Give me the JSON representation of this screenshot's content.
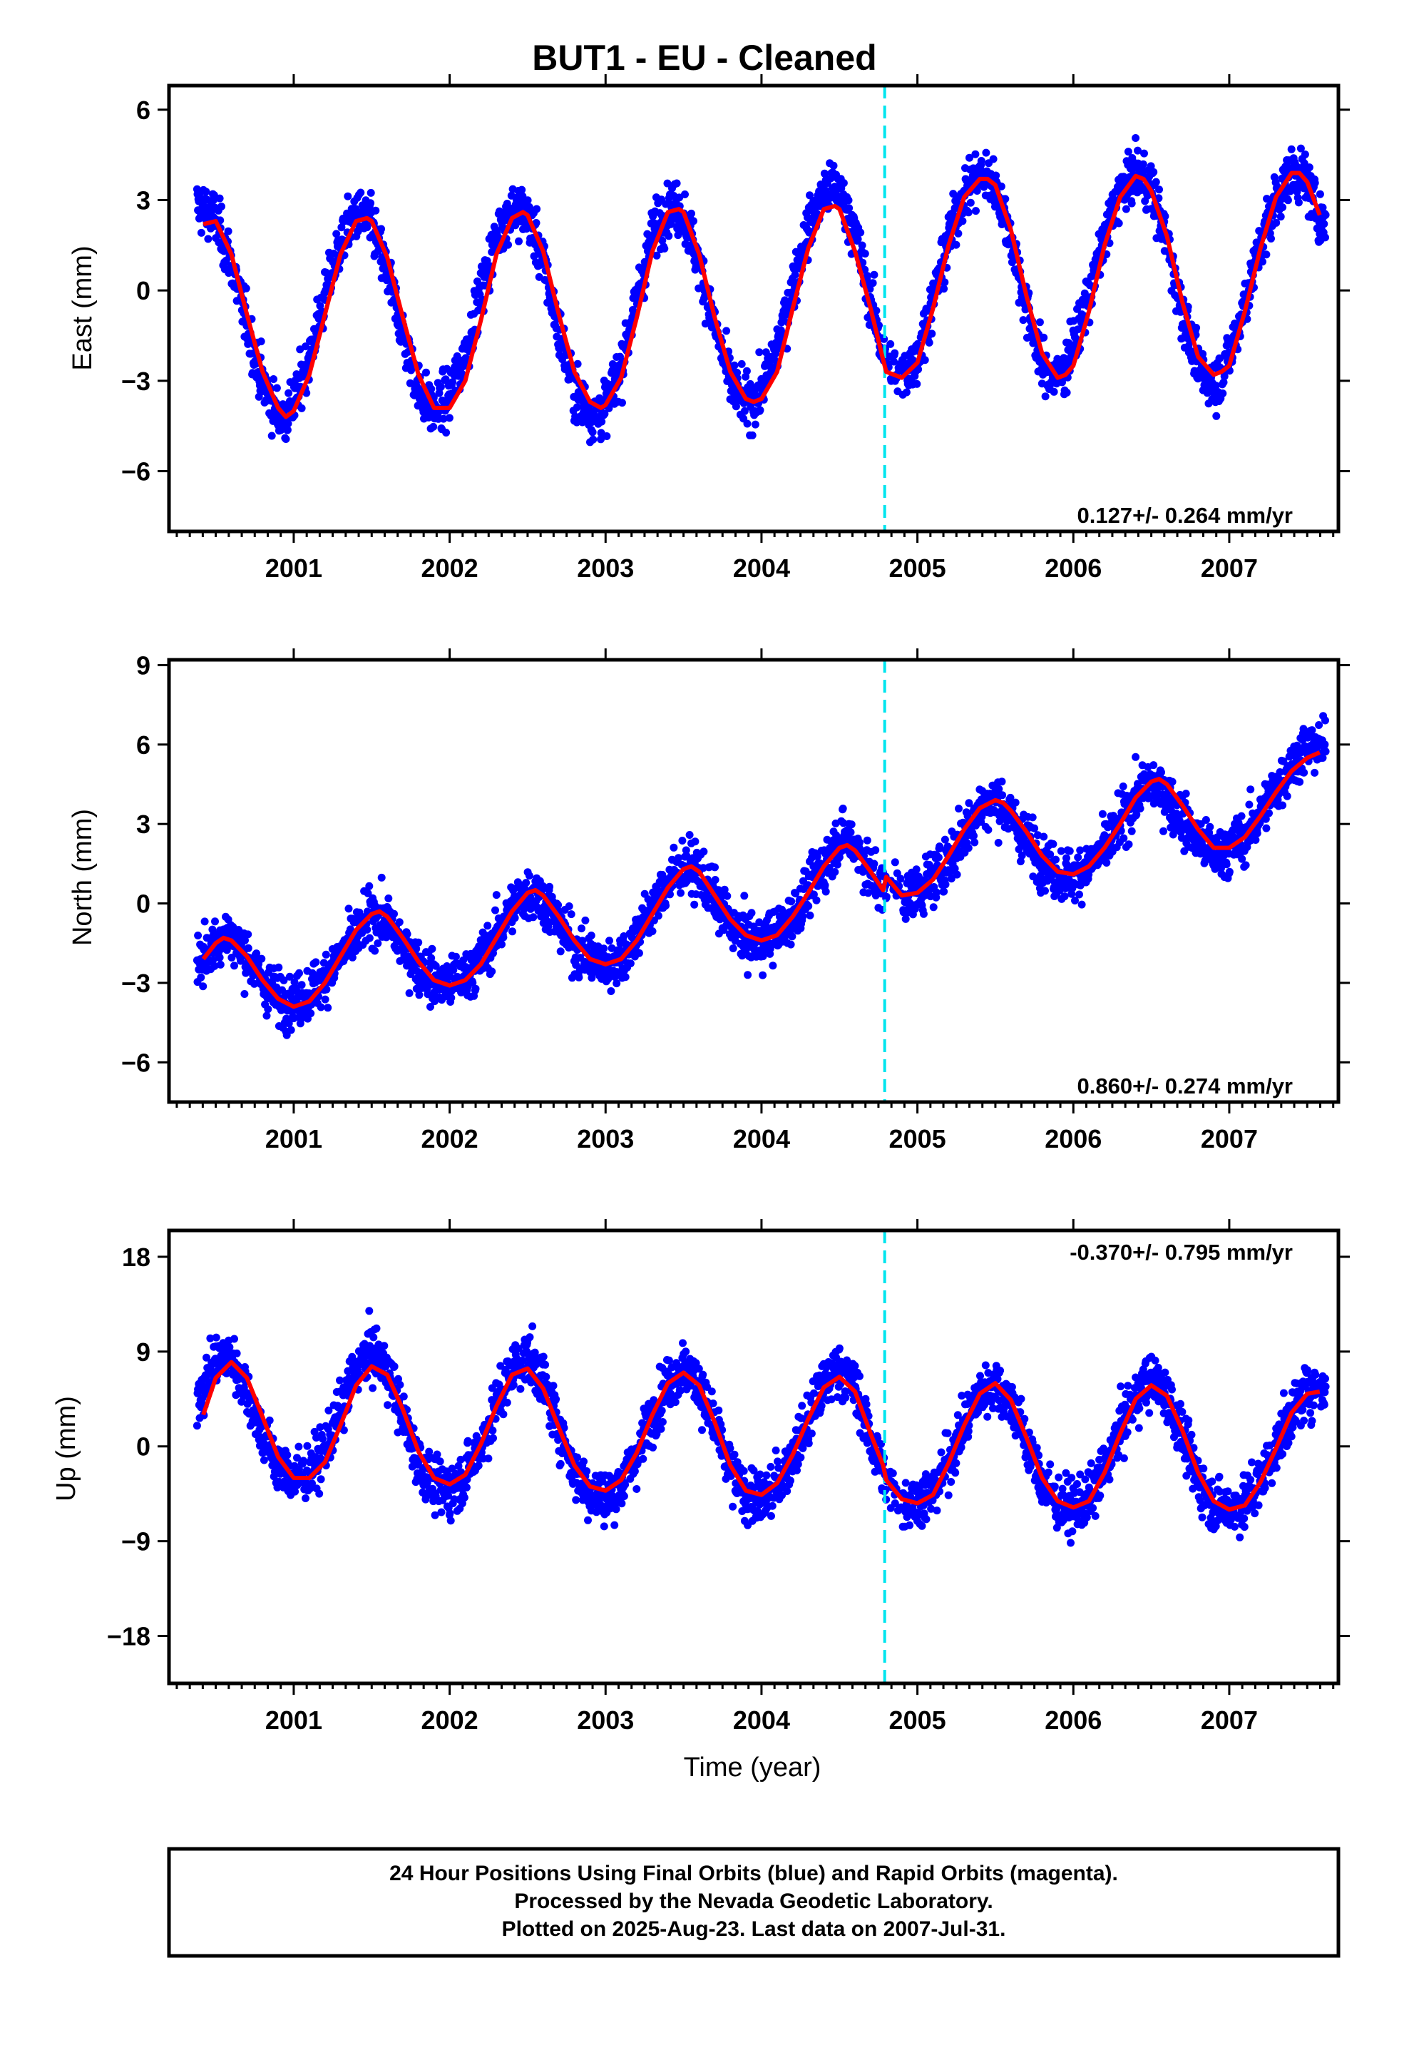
{
  "title": "BUT1  - EU - Cleaned",
  "xlabel": "Time (year)",
  "x_tick_labels": [
    "2001",
    "2002",
    "2003",
    "2004",
    "2005",
    "2006",
    "2007"
  ],
  "colors": {
    "points": "#0000ff",
    "fit": "#ff0000",
    "break_line": "#00e5ee",
    "frame": "#000000"
  },
  "footer": {
    "line1": "24 Hour Positions Using Final Orbits (blue) and Rapid Orbits (magenta).",
    "line2": "Processed by the Nevada Geodetic Laboratory.",
    "line3": "Plotted on 2025-Aug-23. Last data on 2007-Jul-31."
  },
  "chart_data": [
    {
      "type": "scatter",
      "component": "east",
      "ylabel": "East (mm)",
      "rate_text": "0.127+/- 0.264 mm/yr",
      "rate_position": "bottom-right",
      "xlim": [
        2000.2,
        2007.7
      ],
      "ylim": [
        -8,
        6.8
      ],
      "yticks": [
        -6,
        -3,
        0,
        3,
        6
      ],
      "equipment_change_year": 2004.79,
      "series": [
        {
          "name": "",
          "kind": "points",
          "points_note": "daily positions 2000.38–2007.58",
          "x": [
            2000.4,
            2000.5,
            2000.6,
            2000.7,
            2000.8,
            2000.9,
            2001.0,
            2001.1,
            2001.2,
            2001.3,
            2001.4,
            2001.5,
            2001.6,
            2001.7,
            2001.8,
            2001.9,
            2002.0,
            2002.1,
            2002.2,
            2002.3,
            2002.4,
            2002.5,
            2002.6,
            2002.7,
            2002.8,
            2002.9,
            2003.0,
            2003.1,
            2003.2,
            2003.3,
            2003.4,
            2003.5,
            2003.6,
            2003.7,
            2003.8,
            2003.9,
            2004.0,
            2004.1,
            2004.2,
            2004.3,
            2004.4,
            2004.5,
            2004.6,
            2004.7,
            2004.8,
            2004.9,
            2005.0,
            2005.1,
            2005.2,
            2005.3,
            2005.4,
            2005.5,
            2005.6,
            2005.7,
            2005.8,
            2005.9,
            2006.0,
            2006.1,
            2006.2,
            2006.3,
            2006.4,
            2006.5,
            2006.6,
            2006.7,
            2006.8,
            2006.9,
            2007.0,
            2007.1,
            2007.2,
            2007.3,
            2007.4,
            2007.5,
            2007.6
          ],
          "y": [
            3.5,
            2.5,
            0.5,
            -1.5,
            -3.5,
            -4.5,
            -3.5,
            -1.5,
            0.5,
            2.0,
            2.8,
            2.0,
            0.0,
            -2.0,
            -3.8,
            -4.2,
            -3.0,
            -1.0,
            1.0,
            2.5,
            3.0,
            2.5,
            0.5,
            -2.0,
            -4.0,
            -4.5,
            -4.0,
            -2.0,
            0.5,
            2.5,
            3.0,
            2.5,
            0.5,
            -1.5,
            -3.5,
            -4.0,
            -3.0,
            -1.0,
            1.0,
            2.8,
            4.0,
            4.0,
            2.5,
            0.0,
            -2.0,
            -2.8,
            -2.0,
            0.0,
            2.0,
            3.5,
            4.0,
            3.5,
            1.5,
            -1.0,
            -3.0,
            -3.0,
            -1.0,
            0.5,
            2.0,
            3.5,
            4.0,
            3.5,
            1.5,
            -1.0,
            -3.0,
            -3.5,
            -2.0,
            0.0,
            1.5,
            3.0,
            4.0,
            3.5,
            2.0
          ]
        },
        {
          "name": "",
          "kind": "fit",
          "x": [
            2000.42,
            2000.5,
            2000.6,
            2000.7,
            2000.8,
            2000.9,
            2000.95,
            2001.0,
            2001.1,
            2001.2,
            2001.3,
            2001.4,
            2001.47,
            2001.5,
            2001.6,
            2001.7,
            2001.8,
            2001.9,
            2002.0,
            2002.1,
            2002.2,
            2002.3,
            2002.4,
            2002.47,
            2002.5,
            2002.6,
            2002.7,
            2002.8,
            2002.9,
            2002.97,
            2003.0,
            2003.1,
            2003.2,
            2003.3,
            2003.4,
            2003.47,
            2003.5,
            2003.6,
            2003.7,
            2003.8,
            2003.9,
            2003.95,
            2004.0,
            2004.1,
            2004.2,
            2004.3,
            2004.4,
            2004.47,
            2004.5,
            2004.6,
            2004.7,
            2004.78,
            2004.8,
            2004.9,
            2005.0,
            2005.1,
            2005.2,
            2005.3,
            2005.4,
            2005.45,
            2005.5,
            2005.6,
            2005.7,
            2005.8,
            2005.9,
            2005.95,
            2006.0,
            2006.1,
            2006.2,
            2006.3,
            2006.4,
            2006.45,
            2006.5,
            2006.6,
            2006.7,
            2006.8,
            2006.9,
            2006.95,
            2007.0,
            2007.1,
            2007.2,
            2007.3,
            2007.4,
            2007.45,
            2007.5,
            2007.58
          ],
          "y": [
            2.2,
            2.3,
            1.2,
            -0.8,
            -2.7,
            -3.9,
            -4.2,
            -4.0,
            -2.8,
            -0.8,
            1.2,
            2.3,
            2.4,
            2.3,
            1.1,
            -0.9,
            -2.8,
            -3.9,
            -3.9,
            -3.0,
            -1.0,
            1.2,
            2.4,
            2.6,
            2.5,
            1.3,
            -0.8,
            -2.7,
            -3.7,
            -3.9,
            -3.8,
            -2.9,
            -0.9,
            1.3,
            2.6,
            2.7,
            2.6,
            1.2,
            -0.9,
            -2.7,
            -3.6,
            -3.7,
            -3.6,
            -2.7,
            -0.6,
            1.4,
            2.7,
            2.8,
            2.7,
            1.3,
            -0.6,
            -2.3,
            -2.7,
            -2.9,
            -2.4,
            -0.6,
            1.5,
            3.1,
            3.7,
            3.7,
            3.5,
            2.0,
            -0.2,
            -2.1,
            -2.9,
            -2.8,
            -2.5,
            -0.7,
            1.5,
            3.1,
            3.8,
            3.7,
            3.3,
            1.8,
            -0.4,
            -2.2,
            -2.8,
            -2.7,
            -2.5,
            -0.7,
            1.4,
            3.1,
            3.9,
            3.9,
            3.6,
            2.5
          ]
        }
      ]
    },
    {
      "type": "scatter",
      "component": "north",
      "ylabel": "North (mm)",
      "rate_text": "0.860+/- 0.274 mm/yr",
      "rate_position": "bottom-right",
      "xlim": [
        2000.2,
        2007.7
      ],
      "ylim": [
        -7.5,
        9.2
      ],
      "yticks": [
        -6,
        -3,
        0,
        3,
        6,
        9
      ],
      "equipment_change_year": 2004.79,
      "series": [
        {
          "name": "",
          "kind": "points",
          "x": [
            2000.4,
            2000.5,
            2000.6,
            2000.7,
            2000.8,
            2000.9,
            2001.0,
            2001.1,
            2001.2,
            2001.3,
            2001.4,
            2001.5,
            2001.6,
            2001.7,
            2001.8,
            2001.9,
            2002.0,
            2002.1,
            2002.2,
            2002.3,
            2002.4,
            2002.5,
            2002.6,
            2002.7,
            2002.8,
            2002.9,
            2003.0,
            2003.1,
            2003.2,
            2003.3,
            2003.4,
            2003.5,
            2003.6,
            2003.7,
            2003.8,
            2003.9,
            2004.0,
            2004.1,
            2004.2,
            2004.3,
            2004.4,
            2004.5,
            2004.6,
            2004.7,
            2004.8,
            2004.9,
            2005.0,
            2005.1,
            2005.2,
            2005.3,
            2005.4,
            2005.5,
            2005.6,
            2005.7,
            2005.8,
            2005.9,
            2006.0,
            2006.1,
            2006.2,
            2006.3,
            2006.4,
            2006.5,
            2006.6,
            2006.7,
            2006.8,
            2006.9,
            2007.0,
            2007.1,
            2007.2,
            2007.3,
            2007.4,
            2007.5,
            2007.6
          ],
          "y": [
            -2.0,
            -1.5,
            -1.0,
            -2.0,
            -3.0,
            -3.5,
            -3.5,
            -3.0,
            -2.5,
            -2.0,
            -1.5,
            -0.5,
            -1.0,
            -2.0,
            -2.5,
            -3.0,
            -3.0,
            -2.5,
            -2.0,
            -1.0,
            0.0,
            0.5,
            0.0,
            -1.0,
            -2.0,
            -2.0,
            -2.5,
            -2.0,
            -1.0,
            0.0,
            1.0,
            1.5,
            1.0,
            0.0,
            -1.0,
            -1.5,
            -1.5,
            -1.0,
            -0.5,
            0.5,
            1.5,
            3.0,
            2.5,
            1.0,
            0.5,
            0.5,
            0.5,
            1.0,
            1.5,
            2.5,
            3.5,
            4.0,
            3.0,
            2.0,
            1.5,
            1.0,
            1.0,
            1.5,
            2.0,
            3.0,
            4.0,
            4.5,
            3.5,
            2.5,
            2.0,
            1.5,
            2.0,
            2.5,
            3.5,
            4.5,
            5.5,
            6.5,
            6.0
          ]
        },
        {
          "name": "",
          "kind": "fit",
          "x": [
            2000.42,
            2000.5,
            2000.55,
            2000.6,
            2000.7,
            2000.8,
            2000.9,
            2001.0,
            2001.1,
            2001.2,
            2001.3,
            2001.4,
            2001.5,
            2001.55,
            2001.6,
            2001.7,
            2001.8,
            2001.9,
            2002.0,
            2002.1,
            2002.2,
            2002.3,
            2002.4,
            2002.5,
            2002.55,
            2002.6,
            2002.7,
            2002.8,
            2002.9,
            2003.0,
            2003.1,
            2003.2,
            2003.3,
            2003.4,
            2003.5,
            2003.55,
            2003.6,
            2003.7,
            2003.8,
            2003.9,
            2004.0,
            2004.1,
            2004.2,
            2004.3,
            2004.4,
            2004.5,
            2004.55,
            2004.6,
            2004.7,
            2004.78,
            2004.8,
            2004.9,
            2005.0,
            2005.1,
            2005.2,
            2005.3,
            2005.4,
            2005.5,
            2005.55,
            2005.6,
            2005.7,
            2005.8,
            2005.9,
            2006.0,
            2006.1,
            2006.2,
            2006.3,
            2006.4,
            2006.5,
            2006.55,
            2006.6,
            2006.7,
            2006.8,
            2006.9,
            2007.0,
            2007.1,
            2007.2,
            2007.3,
            2007.4,
            2007.5,
            2007.58
          ],
          "y": [
            -2.1,
            -1.5,
            -1.3,
            -1.4,
            -2.0,
            -2.9,
            -3.6,
            -3.9,
            -3.7,
            -3.0,
            -2.0,
            -1.0,
            -0.4,
            -0.3,
            -0.5,
            -1.3,
            -2.2,
            -2.9,
            -3.1,
            -2.9,
            -2.3,
            -1.3,
            -0.3,
            0.4,
            0.5,
            0.3,
            -0.5,
            -1.4,
            -2.1,
            -2.3,
            -2.1,
            -1.4,
            -0.4,
            0.6,
            1.3,
            1.4,
            1.2,
            0.3,
            -0.6,
            -1.2,
            -1.4,
            -1.2,
            -0.5,
            0.4,
            1.4,
            2.1,
            2.2,
            2.0,
            1.2,
            0.5,
            1.0,
            0.3,
            0.4,
            0.9,
            1.8,
            2.8,
            3.6,
            3.9,
            3.8,
            3.5,
            2.7,
            1.8,
            1.2,
            1.1,
            1.4,
            2.1,
            3.0,
            4.0,
            4.6,
            4.7,
            4.5,
            3.7,
            2.8,
            2.1,
            2.1,
            2.5,
            3.3,
            4.2,
            5.0,
            5.5,
            5.7
          ]
        }
      ]
    },
    {
      "type": "scatter",
      "component": "up",
      "ylabel": "Up (mm)",
      "rate_text": "-0.370+/- 0.795 mm/yr",
      "rate_position": "top-right",
      "xlim": [
        2000.2,
        2007.7
      ],
      "ylim": [
        -22.5,
        20.5
      ],
      "yticks": [
        -18,
        -9,
        0,
        9,
        18
      ],
      "equipment_change_year": 2004.79,
      "series": [
        {
          "name": "",
          "kind": "points",
          "x": [
            2000.4,
            2000.5,
            2000.6,
            2000.7,
            2000.8,
            2000.9,
            2001.0,
            2001.1,
            2001.2,
            2001.3,
            2001.4,
            2001.5,
            2001.6,
            2001.7,
            2001.8,
            2001.9,
            2002.0,
            2002.1,
            2002.2,
            2002.3,
            2002.4,
            2002.5,
            2002.6,
            2002.7,
            2002.8,
            2002.9,
            2003.0,
            2003.1,
            2003.2,
            2003.3,
            2003.4,
            2003.5,
            2003.6,
            2003.7,
            2003.8,
            2003.9,
            2004.0,
            2004.1,
            2004.2,
            2004.3,
            2004.4,
            2004.5,
            2004.6,
            2004.7,
            2004.8,
            2004.9,
            2005.0,
            2005.1,
            2005.2,
            2005.3,
            2005.4,
            2005.5,
            2005.6,
            2005.7,
            2005.8,
            2005.9,
            2006.0,
            2006.1,
            2006.2,
            2006.3,
            2006.4,
            2006.5,
            2006.6,
            2006.7,
            2006.8,
            2006.9,
            2007.0,
            2007.1,
            2007.2,
            2007.3,
            2007.4,
            2007.5,
            2007.6
          ],
          "y": [
            8.0,
            10.0,
            9.0,
            4.0,
            -1.0,
            -3.0,
            -3.0,
            -2.0,
            1.0,
            5.0,
            9.0,
            11.0,
            8.0,
            2.0,
            -3.0,
            -5.0,
            -5.0,
            -3.0,
            0.0,
            4.0,
            8.0,
            10.0,
            7.0,
            2.0,
            -3.0,
            -5.0,
            -6.0,
            -4.0,
            -1.0,
            3.0,
            6.0,
            8.0,
            6.0,
            1.0,
            -3.0,
            -5.0,
            -6.0,
            -4.0,
            -1.0,
            2.0,
            6.0,
            9.0,
            6.0,
            0.0,
            -4.0,
            -5.0,
            -5.0,
            -4.0,
            -1.0,
            2.0,
            5.0,
            6.0,
            4.0,
            0.0,
            -4.0,
            -6.0,
            -6.0,
            -5.0,
            -2.0,
            2.0,
            5.0,
            7.0,
            5.0,
            0.0,
            -4.0,
            -6.0,
            -6.0,
            -5.0,
            -3.0,
            0.0,
            3.0,
            6.0,
            6.0
          ]
        },
        {
          "name": "",
          "kind": "fit",
          "x": [
            2000.42,
            2000.5,
            2000.6,
            2000.7,
            2000.8,
            2000.9,
            2001.0,
            2001.1,
            2001.2,
            2001.3,
            2001.4,
            2001.5,
            2001.6,
            2001.7,
            2001.8,
            2001.9,
            2002.0,
            2002.1,
            2002.2,
            2002.3,
            2002.4,
            2002.5,
            2002.6,
            2002.7,
            2002.8,
            2002.9,
            2003.0,
            2003.1,
            2003.2,
            2003.3,
            2003.4,
            2003.5,
            2003.6,
            2003.7,
            2003.8,
            2003.9,
            2004.0,
            2004.1,
            2004.2,
            2004.3,
            2004.4,
            2004.5,
            2004.6,
            2004.7,
            2004.78,
            2004.8,
            2004.9,
            2005.0,
            2005.1,
            2005.2,
            2005.3,
            2005.4,
            2005.5,
            2005.6,
            2005.7,
            2005.8,
            2005.9,
            2006.0,
            2006.1,
            2006.2,
            2006.3,
            2006.4,
            2006.5,
            2006.6,
            2006.7,
            2006.8,
            2006.9,
            2007.0,
            2007.1,
            2007.2,
            2007.3,
            2007.4,
            2007.5,
            2007.58
          ],
          "y": [
            3.0,
            6.5,
            8.0,
            6.5,
            2.8,
            -1.0,
            -3.0,
            -3.0,
            -1.5,
            2.0,
            5.8,
            7.6,
            6.8,
            3.5,
            -0.5,
            -3.0,
            -3.6,
            -2.7,
            0.2,
            3.8,
            6.8,
            7.4,
            5.5,
            1.8,
            -1.8,
            -3.8,
            -4.2,
            -3.2,
            -0.6,
            3.0,
            6.0,
            7.0,
            5.8,
            2.3,
            -1.8,
            -4.2,
            -4.6,
            -3.5,
            -0.8,
            2.6,
            5.6,
            6.6,
            5.2,
            1.2,
            -1.8,
            -3.2,
            -5.0,
            -5.4,
            -4.6,
            -1.6,
            2.0,
            5.0,
            6.0,
            4.4,
            0.8,
            -3.0,
            -5.2,
            -5.8,
            -5.2,
            -2.5,
            1.2,
            4.5,
            5.8,
            4.8,
            1.5,
            -2.5,
            -5.2,
            -6.0,
            -5.6,
            -3.4,
            -0.2,
            3.2,
            5.0,
            5.2
          ]
        }
      ]
    }
  ]
}
